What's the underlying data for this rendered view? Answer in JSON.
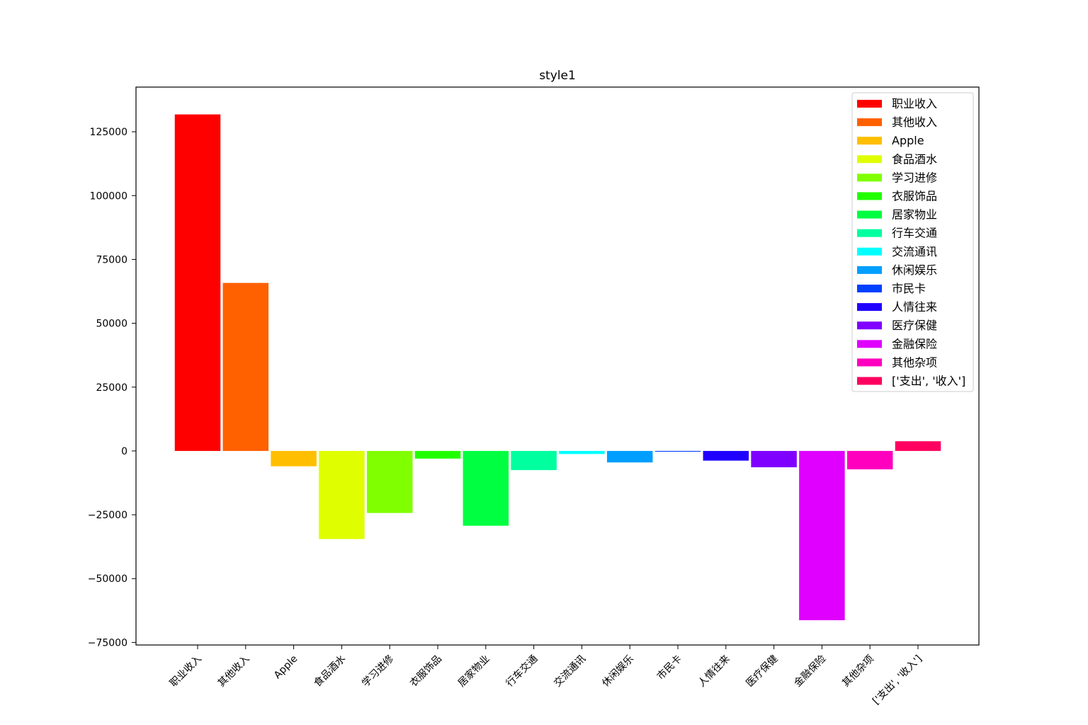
{
  "chart_data": {
    "type": "bar",
    "title": "style1",
    "xlabel": "",
    "ylabel": "",
    "ylim": [
      -76000,
      142500
    ],
    "yticks": [
      125000,
      100000,
      75000,
      50000,
      25000,
      0,
      -25000,
      -50000,
      -75000
    ],
    "ytick_labels": [
      "125000",
      "100000",
      "75000",
      "50000",
      "25000",
      "0",
      "−25000",
      "−50000",
      "−75000"
    ],
    "grid": false,
    "legend_position": "top-right",
    "categories": [
      "职业收入",
      "其他收入",
      "Apple",
      "食品酒水",
      "学习进修",
      "衣服饰品",
      "居家物业",
      "行车交通",
      "交流通讯",
      "休闲娱乐",
      "市民卡",
      "人情往来",
      "医疗保健",
      "金融保险",
      "其他杂项",
      "['支出', '收入']"
    ],
    "values": [
      131800,
      65800,
      -6000,
      -34500,
      -24300,
      -3000,
      -29300,
      -7500,
      -1200,
      -4500,
      -300,
      -3800,
      -6400,
      -66300,
      -7200,
      3800
    ],
    "colors": [
      "#ff0000",
      "#ff6000",
      "#ffbf00",
      "#dfff00",
      "#80ff00",
      "#20ff00",
      "#00ff40",
      "#00ff9f",
      "#00ffff",
      "#009fff",
      "#0040ff",
      "#2000ff",
      "#8000ff",
      "#df00ff",
      "#ff00bf",
      "#ff0060"
    ]
  }
}
